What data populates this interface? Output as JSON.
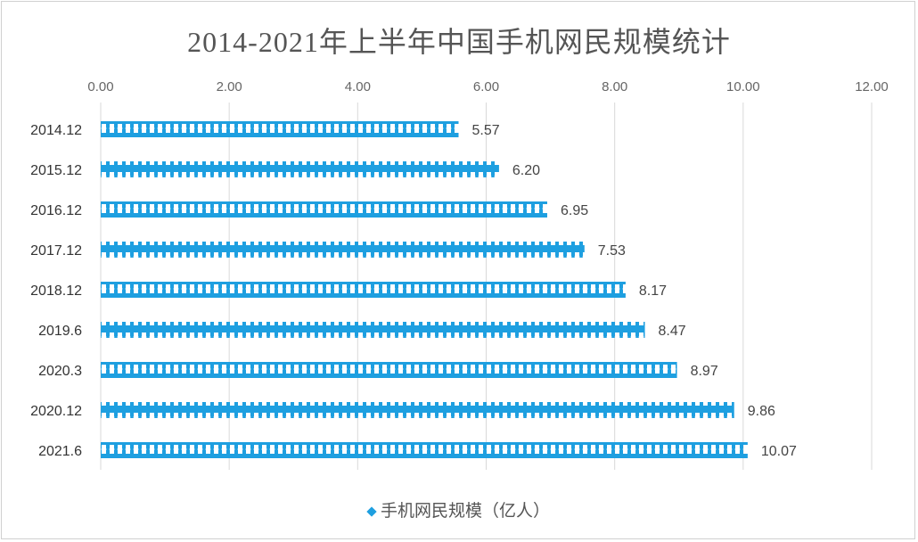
{
  "chart_data": {
    "type": "bar",
    "orientation": "horizontal",
    "title": "2014-2021年上半年中国手机网民规模统计",
    "categories": [
      "2014.12",
      "2015.12",
      "2016.12",
      "2017.12",
      "2018.12",
      "2019.6",
      "2020.3",
      "2020.12",
      "2021.6"
    ],
    "series": [
      {
        "name": "手机网民规模（亿人）",
        "values": [
          5.57,
          6.2,
          6.95,
          7.53,
          8.17,
          8.47,
          8.97,
          9.86,
          10.07
        ],
        "color": "#1e9fe0"
      }
    ],
    "data_labels": [
      "5.57",
      "6.20",
      "6.95",
      "7.53",
      "8.17",
      "8.47",
      "8.97",
      "9.86",
      "10.07"
    ],
    "xlim": [
      0,
      12
    ],
    "x_ticks": [
      "0.00",
      "2.00",
      "4.00",
      "6.00",
      "8.00",
      "10.00",
      "12.00"
    ],
    "x_axis_position": "top",
    "grid": true,
    "legend_position": "bottom"
  }
}
